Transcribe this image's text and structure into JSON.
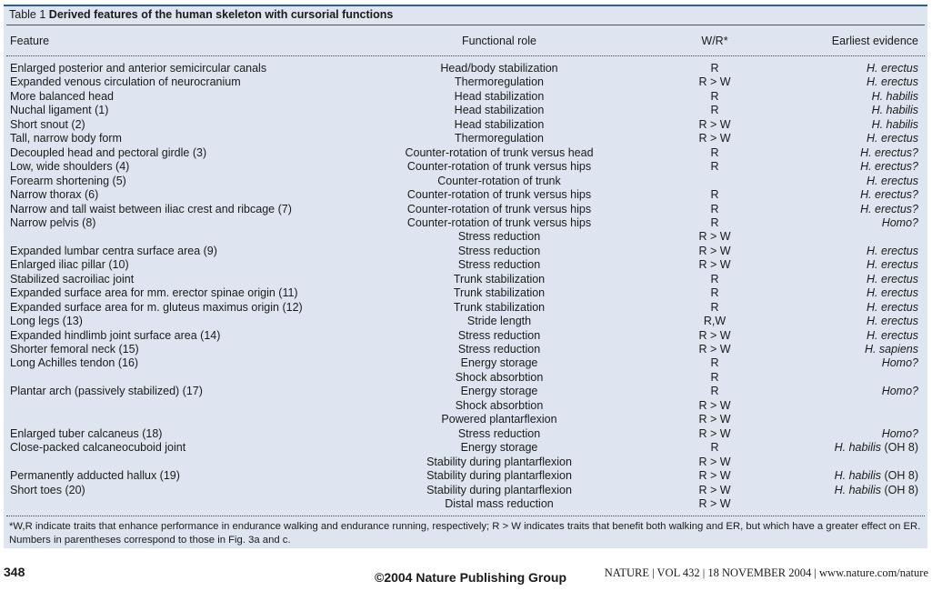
{
  "table": {
    "caption_prefix": "Table 1",
    "caption_title": "Derived features of the human skeleton with cursorial functions",
    "columns": [
      "Feature",
      "Functional role",
      "W/R*",
      "Earliest evidence"
    ],
    "rows": [
      {
        "feature": "Enlarged posterior and anterior semicircular canals",
        "role": "Head/body stabilization",
        "wr": "R",
        "evidence": "H. erectus",
        "evidence_note": ""
      },
      {
        "feature": "Expanded venous circulation of neurocranium",
        "role": "Thermoregulation",
        "wr": "R > W",
        "evidence": "H. erectus",
        "evidence_note": ""
      },
      {
        "feature": "More balanced head",
        "role": "Head stabilization",
        "wr": "R",
        "evidence": "H. habilis",
        "evidence_note": ""
      },
      {
        "feature": "Nuchal ligament (1)",
        "role": "Head stabilization",
        "wr": "R",
        "evidence": "H. habilis",
        "evidence_note": ""
      },
      {
        "feature": "Short snout (2)",
        "role": "Head stabilization",
        "wr": "R > W",
        "evidence": "H. habilis",
        "evidence_note": ""
      },
      {
        "feature": "Tall, narrow body form",
        "role": "Thermoregulation",
        "wr": "R > W",
        "evidence": "H. erectus",
        "evidence_note": ""
      },
      {
        "feature": "Decoupled head and pectoral girdle (3)",
        "role": "Counter-rotation of trunk versus head",
        "wr": "R",
        "evidence": "H. erectus?",
        "evidence_note": ""
      },
      {
        "feature": "Low, wide shoulders (4)",
        "role": "Counter-rotation of trunk versus hips",
        "wr": "R",
        "evidence": "H. erectus?",
        "evidence_note": ""
      },
      {
        "feature": "Forearm shortening (5)",
        "role": "Counter-rotation of trunk",
        "wr": "",
        "evidence": "H. erectus",
        "evidence_note": ""
      },
      {
        "feature": "Narrow thorax (6)",
        "role": "Counter-rotation of trunk versus hips",
        "wr": "R",
        "evidence": "H. erectus?",
        "evidence_note": ""
      },
      {
        "feature": "Narrow and tall waist between iliac crest and ribcage (7)",
        "role": "Counter-rotation of trunk versus hips",
        "wr": "R",
        "evidence": "H. erectus?",
        "evidence_note": ""
      },
      {
        "feature": "Narrow pelvis (8)",
        "role": "Counter-rotation of trunk versus hips",
        "wr": "R",
        "evidence": "Homo?",
        "evidence_note": ""
      },
      {
        "feature": "",
        "role": "Stress reduction",
        "wr": "R > W",
        "evidence": "",
        "evidence_note": ""
      },
      {
        "feature": "Expanded lumbar centra surface area (9)",
        "role": "Stress reduction",
        "wr": "R > W",
        "evidence": "H. erectus",
        "evidence_note": ""
      },
      {
        "feature": "Enlarged iliac pillar (10)",
        "role": "Stress reduction",
        "wr": "R > W",
        "evidence": "H. erectus",
        "evidence_note": ""
      },
      {
        "feature": "Stabilized sacroiliac joint",
        "role": "Trunk stabilization",
        "wr": "R",
        "evidence": "H. erectus",
        "evidence_note": ""
      },
      {
        "feature": "Expanded surface area for mm. erector spinae origin (11)",
        "role": "Trunk stabilization",
        "wr": "R",
        "evidence": "H. erectus",
        "evidence_note": ""
      },
      {
        "feature": "Expanded surface area for m. gluteus maximus origin (12)",
        "role": "Trunk stabilization",
        "wr": "R",
        "evidence": "H. erectus",
        "evidence_note": ""
      },
      {
        "feature": "Long legs (13)",
        "role": "Stride length",
        "wr": "R,W",
        "evidence": "H. erectus",
        "evidence_note": ""
      },
      {
        "feature": "Expanded hindlimb joint surface area (14)",
        "role": "Stress reduction",
        "wr": "R > W",
        "evidence": "H. erectus",
        "evidence_note": ""
      },
      {
        "feature": "Shorter femoral neck (15)",
        "role": "Stress reduction",
        "wr": "R > W",
        "evidence": "H. sapiens",
        "evidence_note": ""
      },
      {
        "feature": "Long Achilles tendon (16)",
        "role": "Energy storage",
        "wr": "R",
        "evidence": "Homo?",
        "evidence_note": ""
      },
      {
        "feature": "",
        "role": "Shock absorbtion",
        "wr": "R",
        "evidence": "",
        "evidence_note": ""
      },
      {
        "feature": "Plantar arch (passively stabilized) (17)",
        "role": "Energy storage",
        "wr": "R",
        "evidence": "Homo?",
        "evidence_note": ""
      },
      {
        "feature": "",
        "role": "Shock absorbtion",
        "wr": "R > W",
        "evidence": "",
        "evidence_note": ""
      },
      {
        "feature": "",
        "role": "Powered plantarflexion",
        "wr": "R > W",
        "evidence": "",
        "evidence_note": ""
      },
      {
        "feature": "Enlarged tuber calcaneus (18)",
        "role": "Stress reduction",
        "wr": "R > W",
        "evidence": "Homo?",
        "evidence_note": ""
      },
      {
        "feature": "Close-packed calcaneocuboid joint",
        "role": "Energy storage",
        "wr": "R",
        "evidence": "H. habilis",
        "evidence_note": "(OH 8)"
      },
      {
        "feature": "",
        "role": "Stability during plantarflexion",
        "wr": "R > W",
        "evidence": "",
        "evidence_note": ""
      },
      {
        "feature": "Permanently adducted hallux (19)",
        "role": "Stability during plantarflexion",
        "wr": "R > W",
        "evidence": "H. habilis",
        "evidence_note": "(OH 8)"
      },
      {
        "feature": "Short toes (20)",
        "role": "Stability during plantarflexion",
        "wr": "R > W",
        "evidence": "H. habilis",
        "evidence_note": "(OH 8)"
      },
      {
        "feature": "",
        "role": "Distal mass reduction",
        "wr": "R > W",
        "evidence": "",
        "evidence_note": ""
      }
    ],
    "footnote": "*W,R indicate traits that enhance performance in endurance walking and endurance running, respectively; R > W indicates traits that benefit both walking and ER, but which have a greater effect on ER. Numbers in parentheses correspond to those in Fig. 3a and c."
  },
  "page": {
    "number": "348",
    "copyright": "©2004  Nature Publishing Group",
    "journal_line": "NATURE | VOL 432 | 18 NOVEMBER 2004 | www.nature.com/nature"
  },
  "colors": {
    "table_background": "#dfe5f0",
    "top_rule": "#2f5f9a"
  }
}
